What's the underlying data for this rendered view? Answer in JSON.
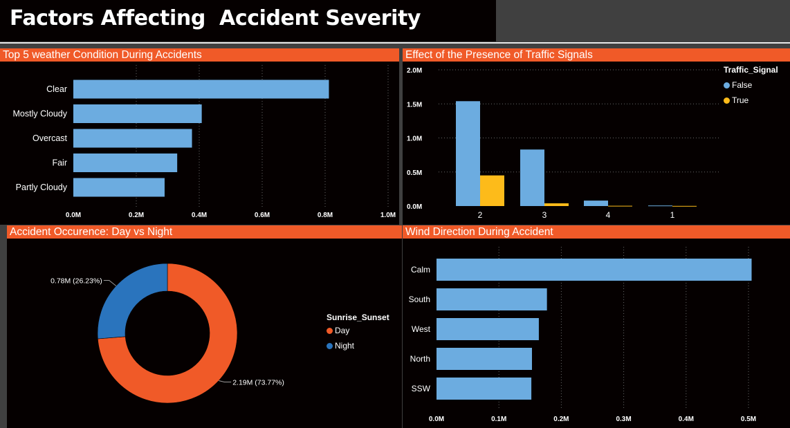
{
  "page": {
    "title": "Factors Affecting  Accident Severity"
  },
  "colors": {
    "orange": "#f05a28",
    "blue": "#6cace0",
    "yellow": "#fdbb1a",
    "dark_blue": "#2a74bd",
    "panel_bg": "#050000"
  },
  "panels": {
    "weather": {
      "title": "Top 5 weather Condition During Accidents"
    },
    "traffic": {
      "title": "Effect of the Presence of Traffic Signals"
    },
    "daynight": {
      "title": "Accident Occurence: Day vs Night"
    },
    "wind": {
      "title": "Wind Direction During Accident"
    }
  },
  "chart_data": [
    {
      "id": "weather",
      "type": "bar",
      "orientation": "horizontal",
      "categories": [
        "Clear",
        "Mostly Cloudy",
        "Overcast",
        "Fair",
        "Partly Cloudy"
      ],
      "values": [
        812000,
        408000,
        377000,
        330000,
        290000
      ],
      "xlim": [
        0,
        1000000
      ],
      "xticks": [
        "0.0M",
        "0.2M",
        "0.4M",
        "0.6M",
        "0.8M",
        "1.0M"
      ],
      "grid": true
    },
    {
      "id": "traffic",
      "type": "bar",
      "orientation": "vertical",
      "categories": [
        "2",
        "3",
        "4",
        "1"
      ],
      "series": [
        {
          "name": "False",
          "values": [
            1540000,
            830000,
            80000,
            8000
          ]
        },
        {
          "name": "True",
          "values": [
            450000,
            40000,
            4000,
            2000
          ]
        }
      ],
      "ylim": [
        0,
        2000000
      ],
      "yticks": [
        "0.0M",
        "0.5M",
        "1.0M",
        "1.5M",
        "2.0M"
      ],
      "legend": {
        "title": "Traffic_Signal",
        "position": "top-right"
      },
      "grid": true
    },
    {
      "id": "daynight",
      "type": "pie",
      "donut": true,
      "slices": [
        {
          "name": "Day",
          "value": 2.19,
          "percent": 73.77,
          "label": "2.19M (73.77%)"
        },
        {
          "name": "Night",
          "value": 0.78,
          "percent": 26.23,
          "label": "0.78M (26.23%)"
        }
      ],
      "legend": {
        "title": "Sunrise_Sunset",
        "position": "right"
      }
    },
    {
      "id": "wind",
      "type": "bar",
      "orientation": "horizontal",
      "categories": [
        "Calm",
        "South",
        "West",
        "North",
        "SSW"
      ],
      "values": [
        505000,
        177000,
        164000,
        153000,
        152000
      ],
      "xlim": [
        0,
        500000
      ],
      "xticks": [
        "0.0M",
        "0.1M",
        "0.2M",
        "0.3M",
        "0.4M",
        "0.5M"
      ],
      "grid": true
    }
  ]
}
